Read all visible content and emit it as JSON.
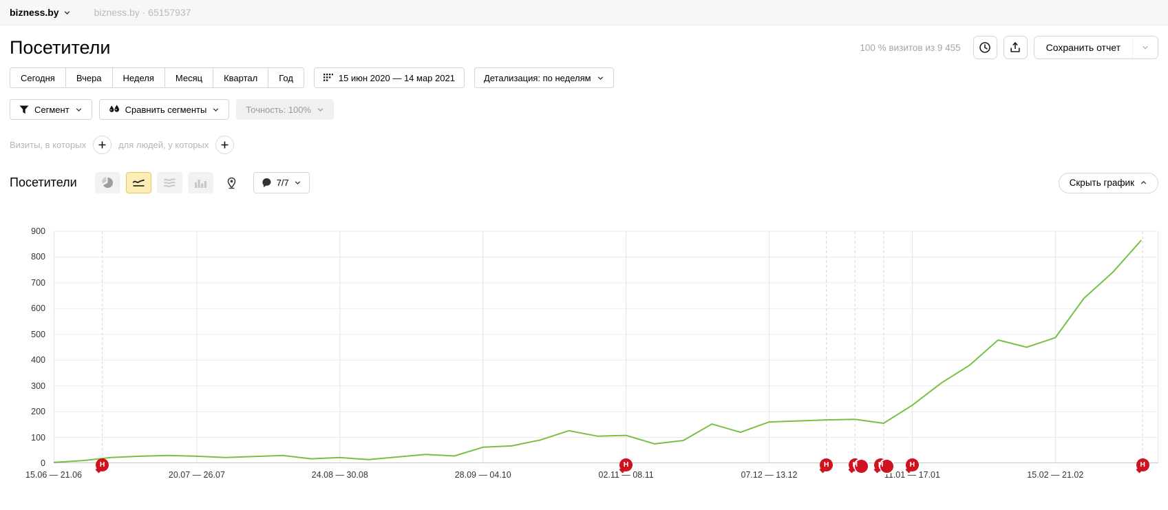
{
  "topbar": {
    "counter_name": "bizness.by",
    "counter_info": "bizness.by · 65157937"
  },
  "header": {
    "title": "Посетители",
    "sample_info": "100 % визитов из 9 455",
    "save_report_label": "Сохранить отчет"
  },
  "filters": {
    "period_tabs": [
      "Сегодня",
      "Вчера",
      "Неделя",
      "Месяц",
      "Квартал",
      "Год"
    ],
    "date_range": "15 июн 2020 — 14 мар 2021",
    "detalization": "Детализация: по неделям",
    "segment_label": "Сегмент",
    "compare_segments_label": "Сравнить сегменты",
    "accuracy_label": "Точность: 100%",
    "visits_condition_label": "Визиты, в которых",
    "people_condition_label": "для людей, у которых"
  },
  "chart_header": {
    "title": "Посетители",
    "notes_count": "7/7",
    "hide_chart_label": "Скрыть график"
  },
  "chart_data": {
    "type": "line",
    "title": "Посетители",
    "xlabel": "",
    "ylabel": "",
    "ylim": [
      0,
      900
    ],
    "y_tick_step": 100,
    "weeks_total": 39,
    "grid": true,
    "line_color": "#77c043",
    "x_tick_labels": [
      {
        "week": 0,
        "label": "15.06 — 21.06"
      },
      {
        "week": 5,
        "label": "20.07 — 26.07"
      },
      {
        "week": 10,
        "label": "24.08 — 30.08"
      },
      {
        "week": 15,
        "label": "28.09 — 04.10"
      },
      {
        "week": 20,
        "label": "02.11 — 08.11"
      },
      {
        "week": 25,
        "label": "07.12 — 13.12"
      },
      {
        "week": 30,
        "label": "11.01 — 17.01"
      },
      {
        "week": 35,
        "label": "15.02 — 21.02"
      }
    ],
    "values": [
      3,
      10,
      22,
      27,
      30,
      27,
      22,
      26,
      30,
      17,
      22,
      14,
      24,
      34,
      28,
      62,
      67,
      90,
      126,
      105,
      108,
      75,
      88,
      152,
      120,
      160,
      164,
      168,
      170,
      155,
      225,
      310,
      380,
      478,
      450,
      487,
      640,
      740,
      865
    ],
    "dashed_guide_weeks": [
      1.7,
      27,
      28,
      29,
      38.05
    ],
    "note_markers": {
      "label": "Н",
      "color": "#d0121f",
      "items": [
        {
          "week": 1.7,
          "double": false
        },
        {
          "week": 20,
          "double": false
        },
        {
          "week": 27,
          "double": false
        },
        {
          "week": 28,
          "double": true
        },
        {
          "week": 28.9,
          "double": true
        },
        {
          "week": 30,
          "double": false
        },
        {
          "week": 38.05,
          "double": false
        }
      ]
    }
  }
}
